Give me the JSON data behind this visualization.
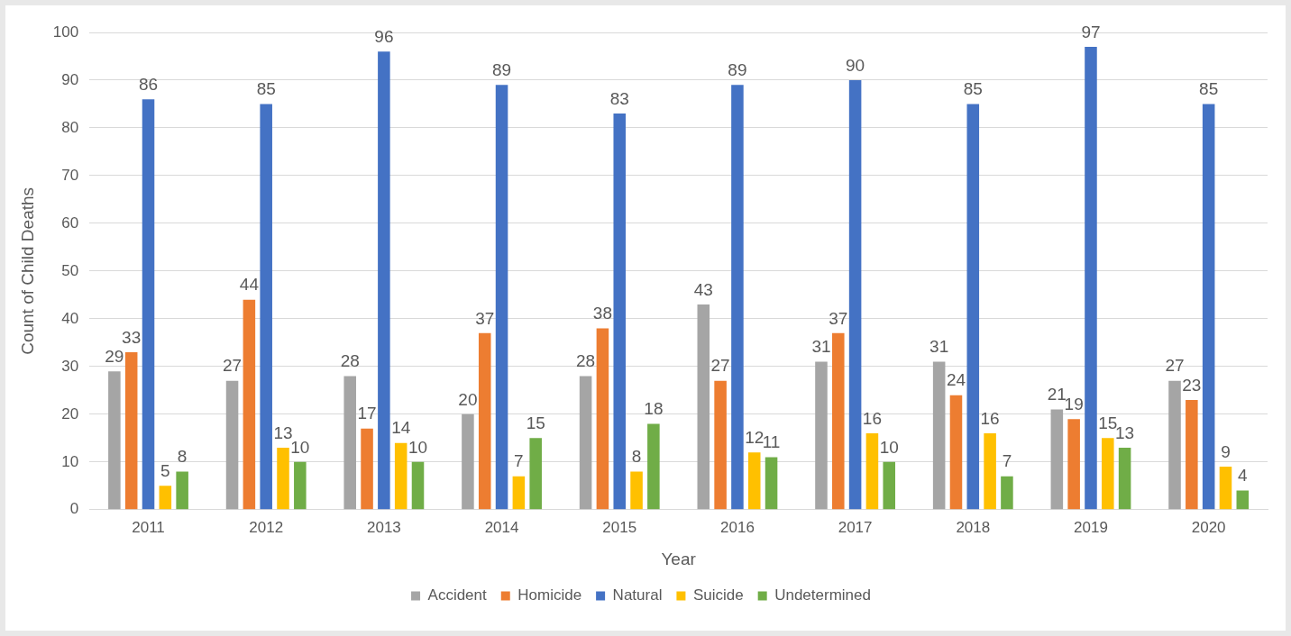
{
  "chart_data": {
    "type": "bar",
    "xlabel": "Year",
    "ylabel": "Count of Child Deaths",
    "categories": [
      "2011",
      "2012",
      "2013",
      "2014",
      "2015",
      "2016",
      "2017",
      "2018",
      "2019",
      "2020"
    ],
    "series": [
      {
        "name": "Accident",
        "color": "#a5a5a5",
        "values": [
          29,
          27,
          28,
          20,
          28,
          43,
          31,
          31,
          21,
          27
        ]
      },
      {
        "name": "Homicide",
        "color": "#ed7d31",
        "values": [
          33,
          44,
          17,
          37,
          38,
          27,
          37,
          24,
          19,
          23
        ]
      },
      {
        "name": "Natural",
        "color": "#4472c4",
        "values": [
          86,
          85,
          96,
          89,
          83,
          89,
          90,
          85,
          97,
          85
        ]
      },
      {
        "name": "Suicide",
        "color": "#ffc000",
        "values": [
          5,
          13,
          14,
          7,
          8,
          12,
          16,
          16,
          15,
          9
        ]
      },
      {
        "name": "Undetermined",
        "color": "#70ad47",
        "values": [
          8,
          10,
          10,
          15,
          18,
          11,
          10,
          7,
          13,
          4
        ]
      }
    ],
    "ylim": [
      0,
      100
    ],
    "yticks": [
      0,
      10,
      20,
      30,
      40,
      50,
      60,
      70,
      80,
      90,
      100
    ],
    "grid": "y",
    "legend": "bottom",
    "data_labels": true
  }
}
